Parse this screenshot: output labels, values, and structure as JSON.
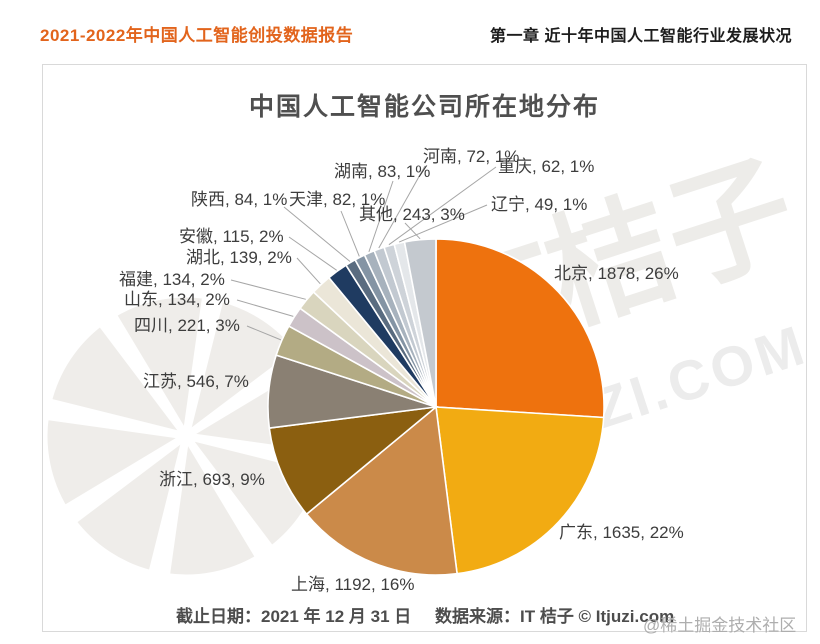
{
  "page": {
    "header_left": "2021-2022年中国人工智能创投数据报告",
    "header_right": "第一章 近十年中国人工智能行业发展状况",
    "footer_date": "截止日期：2021 年 12 月 31 日",
    "footer_source": "数据来源：IT 桔子 © Itjuzi.com",
    "watermark_bottom_right": "@稀土掘金技术社区",
    "watermark_brand": "IT桔子",
    "watermark_domain": "ITJUZI.COM"
  },
  "colors": {
    "header_accent": "#e2641c",
    "label_text": "#3d3d3d",
    "leader_line": "#a6a6a6",
    "watermark_gray": "#efedea"
  },
  "chart_data": {
    "type": "pie",
    "title": "中国人工智能公司所在地分布",
    "label_format": "{label}, {value}, {pct}%",
    "start_angle_deg": 0,
    "direction": "clockwise",
    "slices": [
      {
        "label": "北京",
        "value": 1878,
        "pct": 26,
        "color": "#ee720e"
      },
      {
        "label": "广东",
        "value": 1635,
        "pct": 22,
        "color": "#f2ab12"
      },
      {
        "label": "上海",
        "value": 1192,
        "pct": 16,
        "color": "#cb8a49"
      },
      {
        "label": "浙江",
        "value": 693,
        "pct": 9,
        "color": "#8b5f10"
      },
      {
        "label": "江苏",
        "value": 546,
        "pct": 7,
        "color": "#8a8073"
      },
      {
        "label": "四川",
        "value": 221,
        "pct": 3,
        "color": "#b3ab84"
      },
      {
        "label": "山东",
        "value": 134,
        "pct": 2,
        "color": "#ccc2c8"
      },
      {
        "label": "福建",
        "value": 134,
        "pct": 2,
        "color": "#d9d5be"
      },
      {
        "label": "湖北",
        "value": 139,
        "pct": 2,
        "color": "#ebe6d8"
      },
      {
        "label": "安徽",
        "value": 115,
        "pct": 2,
        "color": "#1f3b61"
      },
      {
        "label": "陕西",
        "value": 84,
        "pct": 1,
        "color": "#5a6c80"
      },
      {
        "label": "天津",
        "value": 82,
        "pct": 1,
        "color": "#8494a4"
      },
      {
        "label": "湖南",
        "value": 83,
        "pct": 1,
        "color": "#a7b2bd"
      },
      {
        "label": "河南",
        "value": 72,
        "pct": 1,
        "color": "#c2c9d1"
      },
      {
        "label": "重庆",
        "value": 62,
        "pct": 1,
        "color": "#ced3d9"
      },
      {
        "label": "辽宁",
        "value": 49,
        "pct": 1,
        "color": "#e4e7ea"
      },
      {
        "label": "其他",
        "value": 243,
        "pct": 3,
        "color": "#c4c9cf"
      }
    ]
  }
}
